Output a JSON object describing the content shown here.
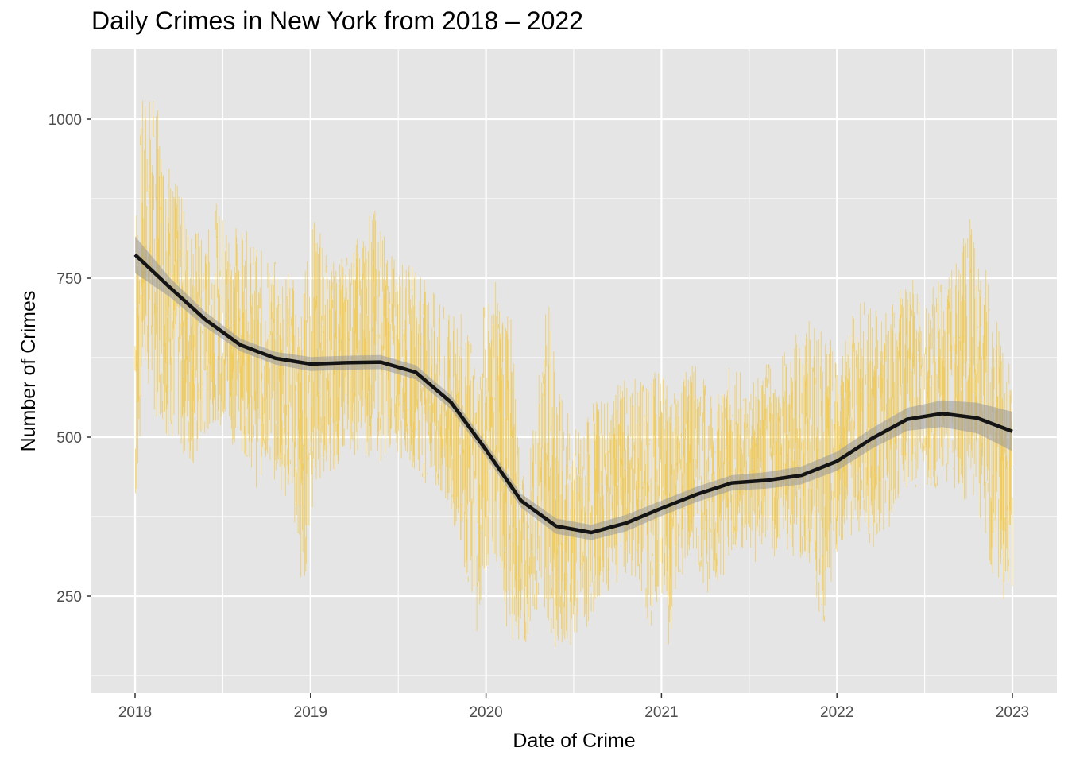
{
  "chart_data": {
    "type": "line",
    "title": "Daily Crimes in New York from 2018 – 2022",
    "xlabel": "Date of Crime",
    "ylabel": "Number of Crimes",
    "xlim": [
      2017.78,
      2023.06
    ],
    "ylim": [
      95,
      1115
    ],
    "x_ticks": [
      2018,
      2019,
      2020,
      2021,
      2022,
      2023
    ],
    "x_tick_labels": [
      "2018",
      "2019",
      "2020",
      "2021",
      "2022",
      "2023"
    ],
    "y_ticks": [
      250,
      500,
      750,
      1000
    ],
    "y_tick_labels": [
      "250",
      "500",
      "750",
      "1000"
    ],
    "grid": true,
    "legend": "none",
    "colors": {
      "panel_background": "#e5e5e5",
      "grid": "#ffffff",
      "daily_series": "#f2c94c",
      "trend_line": "#141414",
      "confidence_band": "#999999"
    },
    "series": [
      {
        "kind": "daily",
        "x": [
          2018.0,
          2018.05,
          2018.1,
          2018.15,
          2018.2,
          2018.25,
          2018.3,
          2018.35,
          2018.4,
          2018.45,
          2018.5,
          2018.55,
          2018.6,
          2018.65,
          2018.7,
          2018.75,
          2018.8,
          2018.85,
          2018.9,
          2018.95,
          2019.0,
          2019.05,
          2019.1,
          2019.15,
          2019.2,
          2019.25,
          2019.3,
          2019.35,
          2019.4,
          2019.45,
          2019.5,
          2019.55,
          2019.6,
          2019.65,
          2019.7,
          2019.75,
          2019.8,
          2019.85,
          2019.9,
          2019.95,
          2020.0,
          2020.05,
          2020.1,
          2020.15,
          2020.2,
          2020.25,
          2020.3,
          2020.35,
          2020.4,
          2020.45,
          2020.5,
          2020.55,
          2020.6,
          2020.65,
          2020.7,
          2020.75,
          2020.8,
          2020.85,
          2020.9,
          2020.95,
          2021.0,
          2021.05,
          2021.1,
          2021.15,
          2021.2,
          2021.25,
          2021.3,
          2021.35,
          2021.4,
          2021.45,
          2021.5,
          2021.55,
          2021.6,
          2021.65,
          2021.7,
          2021.75,
          2021.8,
          2021.85,
          2021.9,
          2021.95,
          2022.0,
          2022.05,
          2022.1,
          2022.15,
          2022.2,
          2022.25,
          2022.3,
          2022.35,
          2022.4,
          2022.45,
          2022.5,
          2022.55,
          2022.6,
          2022.65,
          2022.7,
          2022.75,
          2022.8,
          2022.85,
          2022.9,
          2022.95,
          2023.0
        ],
        "min": [
          320,
          580,
          520,
          510,
          480,
          460,
          450,
          430,
          470,
          520,
          500,
          480,
          470,
          450,
          400,
          440,
          420,
          400,
          380,
          200,
          350,
          420,
          430,
          440,
          480,
          460,
          470,
          440,
          450,
          470,
          460,
          450,
          440,
          420,
          400,
          360,
          350,
          330,
          240,
          180,
          260,
          300,
          200,
          170,
          150,
          180,
          220,
          200,
          150,
          170,
          160,
          170,
          200,
          240,
          250,
          260,
          270,
          250,
          220,
          180,
          230,
          140,
          260,
          280,
          300,
          240,
          260,
          270,
          300,
          310,
          300,
          280,
          320,
          300,
          310,
          300,
          280,
          290,
          200,
          180,
          300,
          340,
          320,
          330,
          300,
          340,
          350,
          380,
          400,
          410,
          420,
          400,
          420,
          410,
          400,
          380,
          340,
          330,
          240,
          230,
          220
        ],
        "max": [
          900,
          1070,
          1060,
          1010,
          960,
          900,
          870,
          850,
          820,
          880,
          870,
          860,
          840,
          830,
          810,
          800,
          790,
          780,
          770,
          740,
          860,
          850,
          800,
          780,
          800,
          820,
          840,
          880,
          860,
          800,
          790,
          780,
          790,
          760,
          740,
          720,
          700,
          710,
          680,
          650,
          760,
          760,
          720,
          700,
          450,
          480,
          620,
          780,
          600,
          560,
          530,
          520,
          560,
          580,
          560,
          590,
          600,
          610,
          600,
          620,
          630,
          580,
          620,
          640,
          620,
          600,
          580,
          610,
          620,
          620,
          600,
          610,
          630,
          620,
          650,
          670,
          690,
          700,
          680,
          670,
          660,
          680,
          720,
          730,
          720,
          700,
          710,
          740,
          750,
          760,
          740,
          750,
          760,
          780,
          800,
          870,
          790,
          780,
          700,
          680,
          620
        ]
      },
      {
        "kind": "smooth",
        "x": [
          2018.0,
          2018.2,
          2018.4,
          2018.6,
          2018.8,
          2019.0,
          2019.2,
          2019.4,
          2019.6,
          2019.8,
          2020.0,
          2020.2,
          2020.4,
          2020.6,
          2020.8,
          2021.0,
          2021.2,
          2021.4,
          2021.6,
          2021.8,
          2022.0,
          2022.2,
          2022.4,
          2022.6,
          2022.8,
          2023.0
        ],
        "y": [
          787,
          735,
          685,
          645,
          624,
          615,
          617,
          618,
          602,
          555,
          480,
          400,
          360,
          350,
          365,
          388,
          410,
          428,
          432,
          440,
          462,
          498,
          528,
          537,
          530,
          509
        ],
        "band_lower": [
          758,
          720,
          673,
          635,
          614,
          604,
          606,
          607,
          591,
          544,
          469,
          389,
          348,
          338,
          352,
          376,
          398,
          416,
          419,
          426,
          447,
          482,
          510,
          516,
          506,
          478
        ],
        "band_upper": [
          816,
          750,
          697,
          655,
          634,
          626,
          628,
          629,
          613,
          566,
          491,
          411,
          372,
          362,
          378,
          400,
          422,
          440,
          445,
          454,
          477,
          514,
          546,
          558,
          554,
          540
        ]
      }
    ]
  }
}
